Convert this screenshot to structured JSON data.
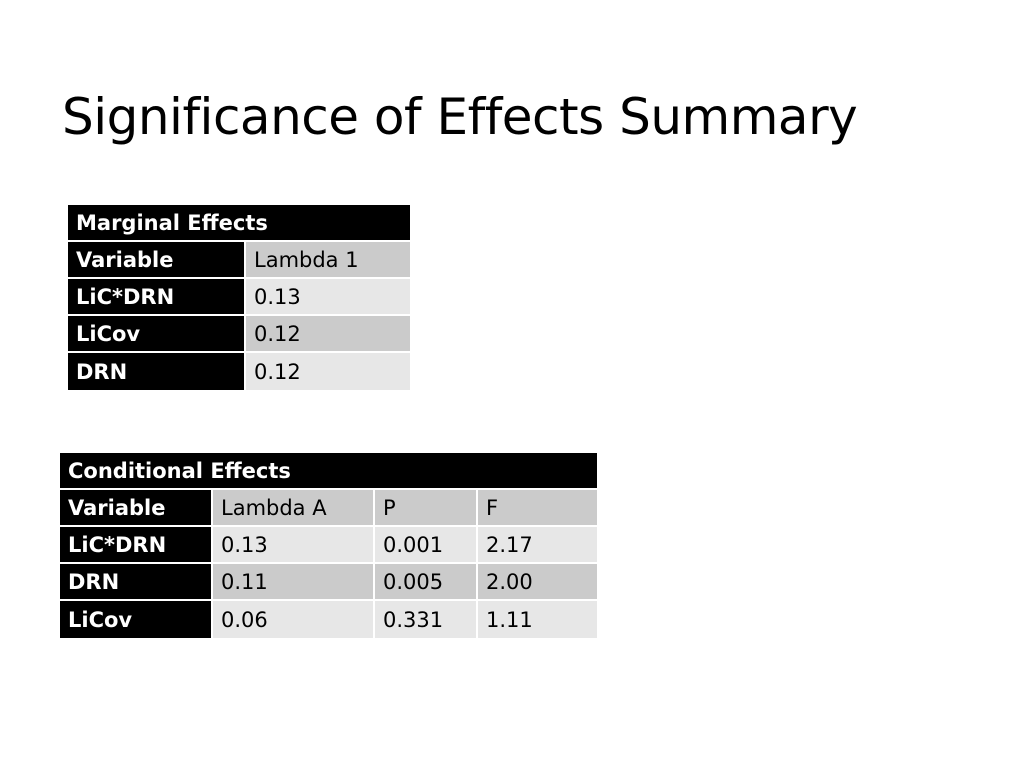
{
  "title": "Significance of Effects Summary",
  "marginal": {
    "heading": "Marginal Effects",
    "header": [
      "Variable",
      "Lambda 1"
    ],
    "rows": [
      [
        "LiC*DRN",
        "0.13"
      ],
      [
        "LiCov",
        "0.12"
      ],
      [
        "DRN",
        "0.12"
      ]
    ]
  },
  "conditional": {
    "heading": "Conditional Effects",
    "header": [
      "Variable",
      "Lambda A",
      "P",
      "F"
    ],
    "rows": [
      [
        "LiC*DRN",
        "0.13",
        "0.001",
        "2.17"
      ],
      [
        "DRN",
        "0.11",
        "0.005",
        "2.00"
      ],
      [
        "LiCov",
        "0.06",
        "0.331",
        "1.11"
      ]
    ]
  }
}
